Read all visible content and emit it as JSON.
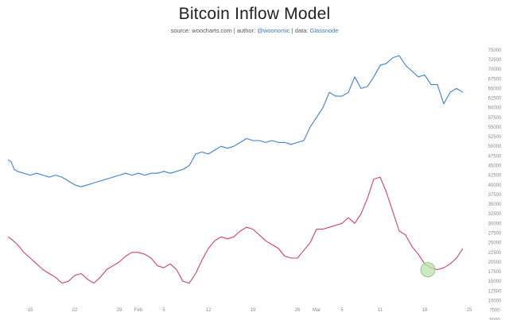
{
  "header": {
    "title": "Bitcoin Inflow Model",
    "subtitle_prefix": "source: woocharts.com | author: ",
    "author": "@woonomic",
    "subtitle_mid": " | data: ",
    "data_source": "Glassnode"
  },
  "colors": {
    "price": "#3f7ed6",
    "model": "#d0406a",
    "highlight_fill": "#b9e3ad",
    "highlight_stroke": "#7cc46b",
    "axis": "#bbbbbb"
  },
  "chart_data": {
    "type": "line",
    "title": "Bitcoin Inflow Model",
    "x_tick_labels": [
      {
        "label": "15",
        "day": 15
      },
      {
        "label": "22",
        "day": 22
      },
      {
        "label": "29",
        "day": 29
      },
      {
        "label": "Feb",
        "day": 32
      },
      {
        "label": "5",
        "day": 36
      },
      {
        "label": "12",
        "day": 43
      },
      {
        "label": "19",
        "day": 50
      },
      {
        "label": "26",
        "day": 57
      },
      {
        "label": "Mar",
        "day": 60
      },
      {
        "label": "5",
        "day": 64
      },
      {
        "label": "11",
        "day": 70
      },
      {
        "label": "18",
        "day": 77
      },
      {
        "label": "25",
        "day": 84
      }
    ],
    "xlim_day": [
      11.5,
      85.5
    ],
    "ylim": [
      3500,
      76000
    ],
    "y_ticks": [
      5000,
      7500,
      10000,
      12500,
      15000,
      17500,
      20000,
      22500,
      25000,
      27500,
      30000,
      32500,
      35000,
      37500,
      40000,
      42500,
      45000,
      47500,
      50000,
      52500,
      55000,
      57500,
      60000,
      62500,
      65000,
      67500,
      70000,
      72500,
      75000
    ],
    "y_tick_labels": [
      "5000",
      "7500",
      "10000",
      "12500",
      "15000",
      "17500",
      "20000",
      "22500",
      "25000",
      "27500",
      "30000",
      "32500",
      "35000",
      "37500",
      "40000",
      "42500",
      "45000",
      "47500",
      "50000",
      "52500",
      "55000",
      "57500",
      "60000",
      "62500",
      "65000",
      "67500",
      "70000",
      "72500",
      "75000"
    ],
    "series": [
      {
        "key": "price",
        "day": [
          11.5,
          12,
          12.5,
          13,
          14,
          15,
          16,
          17,
          18,
          19,
          20,
          21,
          22,
          23,
          24,
          25,
          26,
          27,
          28,
          29,
          30,
          31,
          32,
          33,
          34,
          35,
          36,
          37,
          38,
          39,
          40,
          41,
          42,
          43,
          44,
          45,
          46,
          47,
          48,
          49,
          50,
          51,
          52,
          53,
          54,
          55,
          56,
          57,
          58,
          59,
          60,
          61,
          62,
          63,
          64,
          65,
          66,
          67,
          68,
          69,
          70,
          71,
          72,
          73,
          74,
          75,
          76,
          77,
          78,
          79,
          80,
          81,
          82,
          83
        ],
        "values": [
          46500,
          46000,
          44000,
          43500,
          43000,
          42500,
          43000,
          42500,
          42000,
          42500,
          42000,
          41000,
          40000,
          39500,
          40000,
          40500,
          41000,
          41500,
          42000,
          42500,
          43000,
          42500,
          43000,
          42500,
          43000,
          43000,
          43500,
          43000,
          43500,
          44000,
          45000,
          48000,
          48500,
          48000,
          49000,
          50000,
          49500,
          50000,
          51000,
          52000,
          51500,
          51500,
          51000,
          51500,
          51000,
          51000,
          50500,
          51000,
          51500,
          55000,
          57500,
          60000,
          64000,
          63000,
          63000,
          64000,
          68000,
          65000,
          65500,
          68000,
          71000,
          71500,
          73000,
          73500,
          71000,
          69500,
          68000,
          68500,
          66000,
          66000,
          61000,
          64000,
          65000,
          64000
        ]
      },
      {
        "key": "model",
        "day": [
          11.5,
          12,
          13,
          14,
          15,
          16,
          17,
          18,
          19,
          20,
          21,
          22,
          23,
          24,
          25,
          26,
          27,
          28,
          29,
          30,
          31,
          32,
          33,
          34,
          35,
          36,
          37,
          38,
          39,
          40,
          41,
          42,
          43,
          44,
          45,
          46,
          47,
          48,
          49,
          50,
          51,
          52,
          53,
          54,
          55,
          56,
          57,
          58,
          59,
          60,
          61,
          62,
          63,
          64,
          65,
          66,
          67,
          68,
          69,
          70,
          71,
          72,
          73,
          74,
          75,
          76,
          77,
          78,
          79,
          80,
          81,
          82,
          83
        ],
        "values": [
          26500,
          26000,
          24500,
          22500,
          21000,
          19500,
          18000,
          17000,
          16000,
          14500,
          15000,
          16500,
          17000,
          15500,
          14500,
          16000,
          18000,
          19000,
          20000,
          21500,
          22500,
          22500,
          22000,
          21000,
          19000,
          18500,
          19500,
          18000,
          15000,
          14500,
          17000,
          20500,
          23500,
          25500,
          26500,
          26000,
          26500,
          28000,
          29000,
          28500,
          27000,
          25500,
          24500,
          23500,
          21500,
          21000,
          21000,
          23000,
          25000,
          28500,
          28500,
          29000,
          29500,
          30000,
          31500,
          30000,
          32500,
          36500,
          41500,
          42000,
          38000,
          33000,
          28000,
          27000,
          24000,
          22000,
          19500,
          18500,
          18000,
          18500,
          19500,
          21000,
          23500
        ]
      }
    ],
    "highlight": {
      "day": 77.5,
      "value": 18000
    },
    "grid": false,
    "legend": "none"
  }
}
